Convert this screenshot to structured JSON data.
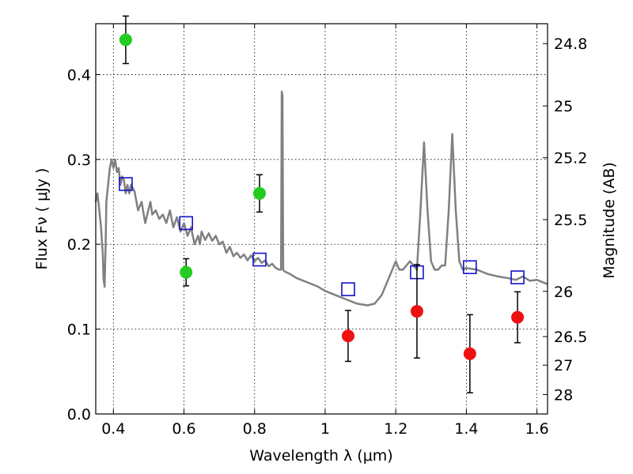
{
  "chart_data": {
    "type": "scatter",
    "title": "",
    "xlabel": "Wavelength  λ (μm)",
    "ylabel": "Flux  Fν  ( μJy )",
    "y2label": "Magnitude (AB)",
    "xlim": [
      0.35,
      1.63
    ],
    "ylim": [
      0.0,
      0.46
    ],
    "grid": true,
    "x_ticks": [
      0.4,
      0.6,
      0.8,
      1.0,
      1.2,
      1.4,
      1.6
    ],
    "x_tick_labels": [
      "0.4",
      "0.6",
      "0.8",
      "1",
      "1.2",
      "1.4",
      "1.6"
    ],
    "y_ticks": [
      0.0,
      0.1,
      0.2,
      0.3,
      0.4
    ],
    "y_tick_labels": [
      "0.0",
      "0.1",
      "0.2",
      "0.3",
      "0.4"
    ],
    "y2_ticks": [
      {
        "label": "24.8",
        "mag": 24.8
      },
      {
        "label": "25",
        "mag": 25.0
      },
      {
        "label": "25.2",
        "mag": 25.2
      },
      {
        "label": "25.5",
        "mag": 25.5
      },
      {
        "label": "26",
        "mag": 26.0
      },
      {
        "label": "26.5",
        "mag": 26.5
      },
      {
        "label": "27",
        "mag": 27.0
      },
      {
        "label": "28",
        "mag": 28.0
      }
    ],
    "series": [
      {
        "name": "green detections",
        "marker": "circle",
        "color": "#22cc22",
        "points": [
          {
            "x": 0.435,
            "y": 0.441,
            "yerr": 0.028
          },
          {
            "x": 0.606,
            "y": 0.167,
            "yerr": 0.016
          },
          {
            "x": 0.814,
            "y": 0.26,
            "yerr": 0.022
          }
        ]
      },
      {
        "name": "red detections",
        "marker": "circle",
        "color": "#ee1111",
        "points": [
          {
            "x": 1.065,
            "y": 0.092,
            "yerr": 0.03
          },
          {
            "x": 1.26,
            "y": 0.121,
            "yerr": 0.055
          },
          {
            "x": 1.41,
            "y": 0.071,
            "yerr": 0.046
          },
          {
            "x": 1.545,
            "y": 0.114,
            "yerr": 0.03
          }
        ]
      },
      {
        "name": "model photometry",
        "marker": "open-square",
        "color": "#1111cc",
        "points": [
          {
            "x": 0.435,
            "y": 0.271
          },
          {
            "x": 0.606,
            "y": 0.225
          },
          {
            "x": 0.814,
            "y": 0.182
          },
          {
            "x": 1.065,
            "y": 0.147
          },
          {
            "x": 1.26,
            "y": 0.167
          },
          {
            "x": 1.41,
            "y": 0.173
          },
          {
            "x": 1.545,
            "y": 0.161
          }
        ]
      },
      {
        "name": "model SED",
        "marker": "line",
        "color": "#808080",
        "x": [
          0.35,
          0.355,
          0.36,
          0.365,
          0.368,
          0.37,
          0.372,
          0.375,
          0.378,
          0.38,
          0.385,
          0.39,
          0.395,
          0.4,
          0.405,
          0.41,
          0.415,
          0.42,
          0.425,
          0.43,
          0.435,
          0.44,
          0.445,
          0.45,
          0.46,
          0.47,
          0.48,
          0.49,
          0.5,
          0.505,
          0.51,
          0.52,
          0.53,
          0.54,
          0.55,
          0.56,
          0.57,
          0.58,
          0.59,
          0.6,
          0.61,
          0.62,
          0.63,
          0.64,
          0.645,
          0.65,
          0.66,
          0.67,
          0.68,
          0.69,
          0.7,
          0.71,
          0.72,
          0.73,
          0.74,
          0.75,
          0.76,
          0.77,
          0.78,
          0.79,
          0.8,
          0.81,
          0.82,
          0.83,
          0.84,
          0.85,
          0.86,
          0.87,
          0.875,
          0.877,
          0.879,
          0.881,
          0.885,
          0.9,
          0.92,
          0.95,
          0.98,
          1.0,
          1.03,
          1.06,
          1.09,
          1.12,
          1.14,
          1.16,
          1.18,
          1.2,
          1.21,
          1.22,
          1.23,
          1.24,
          1.25,
          1.26,
          1.27,
          1.28,
          1.29,
          1.3,
          1.31,
          1.32,
          1.33,
          1.34,
          1.35,
          1.36,
          1.37,
          1.38,
          1.39,
          1.4,
          1.43,
          1.46,
          1.49,
          1.52,
          1.54,
          1.56,
          1.58,
          1.6,
          1.63
        ],
        "y": [
          0.25,
          0.26,
          0.24,
          0.22,
          0.2,
          0.19,
          0.16,
          0.15,
          0.2,
          0.25,
          0.27,
          0.29,
          0.3,
          0.29,
          0.3,
          0.285,
          0.29,
          0.27,
          0.28,
          0.275,
          0.26,
          0.27,
          0.26,
          0.27,
          0.262,
          0.24,
          0.25,
          0.225,
          0.242,
          0.25,
          0.235,
          0.24,
          0.23,
          0.235,
          0.225,
          0.24,
          0.22,
          0.232,
          0.215,
          0.225,
          0.21,
          0.22,
          0.2,
          0.21,
          0.2,
          0.215,
          0.205,
          0.213,
          0.204,
          0.21,
          0.2,
          0.203,
          0.19,
          0.197,
          0.186,
          0.19,
          0.184,
          0.188,
          0.181,
          0.187,
          0.18,
          0.184,
          0.178,
          0.181,
          0.174,
          0.177,
          0.172,
          0.17,
          0.17,
          0.38,
          0.375,
          0.17,
          0.168,
          0.165,
          0.16,
          0.155,
          0.15,
          0.145,
          0.14,
          0.135,
          0.13,
          0.128,
          0.13,
          0.14,
          0.16,
          0.18,
          0.17,
          0.17,
          0.175,
          0.18,
          0.175,
          0.17,
          0.24,
          0.32,
          0.24,
          0.18,
          0.17,
          0.17,
          0.175,
          0.175,
          0.24,
          0.33,
          0.24,
          0.18,
          0.17,
          0.172,
          0.17,
          0.165,
          0.162,
          0.16,
          0.158,
          0.162,
          0.157,
          0.158,
          0.153
        ]
      }
    ]
  }
}
